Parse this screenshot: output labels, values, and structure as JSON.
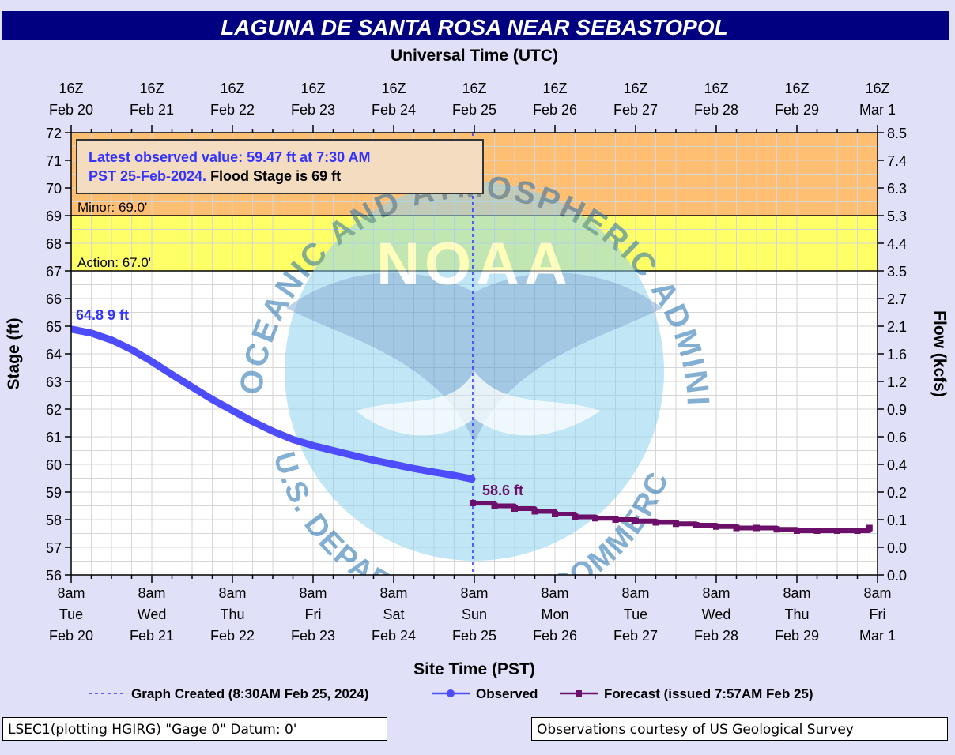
{
  "colors": {
    "background": "#E0E0F8",
    "title_bar": "#000080",
    "minor_band": "#FFBF73",
    "action_band": "#FFFF66",
    "observed": "#4D4DFF",
    "forecast": "#6B0F6B",
    "annotation_text": "#3333FF"
  },
  "chart_data": {
    "type": "line",
    "title": "LAGUNA DE SANTA ROSA NEAR SEBASTOPOL",
    "top_axis_label": "Universal Time (UTC)",
    "top_ticks": [
      {
        "day": 0,
        "line1": "16Z",
        "line2": "Feb 20"
      },
      {
        "day": 1,
        "line1": "16Z",
        "line2": "Feb 21"
      },
      {
        "day": 2,
        "line1": "16Z",
        "line2": "Feb 22"
      },
      {
        "day": 3,
        "line1": "16Z",
        "line2": "Feb 23"
      },
      {
        "day": 4,
        "line1": "16Z",
        "line2": "Feb 24"
      },
      {
        "day": 5,
        "line1": "16Z",
        "line2": "Feb 25"
      },
      {
        "day": 6,
        "line1": "16Z",
        "line2": "Feb 26"
      },
      {
        "day": 7,
        "line1": "16Z",
        "line2": "Feb 27"
      },
      {
        "day": 8,
        "line1": "16Z",
        "line2": "Feb 28"
      },
      {
        "day": 9,
        "line1": "16Z",
        "line2": "Feb 29"
      },
      {
        "day": 10,
        "line1": "16Z",
        "line2": "Mar 1"
      }
    ],
    "bottom_ticks": [
      {
        "day": 0,
        "time": "8am",
        "weekday": "Tue",
        "date": "Feb 20"
      },
      {
        "day": 1,
        "time": "8am",
        "weekday": "Wed",
        "date": "Feb 21"
      },
      {
        "day": 2,
        "time": "8am",
        "weekday": "Thu",
        "date": "Feb 22"
      },
      {
        "day": 3,
        "time": "8am",
        "weekday": "Fri",
        "date": "Feb 23"
      },
      {
        "day": 4,
        "time": "8am",
        "weekday": "Sat",
        "date": "Feb 24"
      },
      {
        "day": 5,
        "time": "8am",
        "weekday": "Sun",
        "date": "Feb 25"
      },
      {
        "day": 6,
        "time": "8am",
        "weekday": "Mon",
        "date": "Feb 26"
      },
      {
        "day": 7,
        "time": "8am",
        "weekday": "Tue",
        "date": "Feb 27"
      },
      {
        "day": 8,
        "time": "8am",
        "weekday": "Wed",
        "date": "Feb 28"
      },
      {
        "day": 9,
        "time": "8am",
        "weekday": "Thu",
        "date": "Feb 29"
      },
      {
        "day": 10,
        "time": "8am",
        "weekday": "Fri",
        "date": "Mar 1"
      }
    ],
    "xlabel": "Site Time (PST)",
    "ylabel": "Stage (ft)",
    "y2label": "Flow (kcfs)",
    "ylim": [
      56,
      72
    ],
    "y_ticks": [
      56,
      57,
      58,
      59,
      60,
      61,
      62,
      63,
      64,
      65,
      66,
      67,
      68,
      69,
      70,
      71,
      72
    ],
    "y2_ticks": [
      {
        "stage": 56,
        "label": "0.0"
      },
      {
        "stage": 57,
        "label": "0.0"
      },
      {
        "stage": 58,
        "label": "0.1"
      },
      {
        "stage": 59,
        "label": "0.2"
      },
      {
        "stage": 60,
        "label": "0.4"
      },
      {
        "stage": 61,
        "label": "0.6"
      },
      {
        "stage": 62,
        "label": "0.9"
      },
      {
        "stage": 63,
        "label": "1.2"
      },
      {
        "stage": 64,
        "label": "1.6"
      },
      {
        "stage": 65,
        "label": "2.1"
      },
      {
        "stage": 66,
        "label": "2.7"
      },
      {
        "stage": 67,
        "label": "3.5"
      },
      {
        "stage": 68,
        "label": "4.4"
      },
      {
        "stage": 69,
        "label": "5.3"
      },
      {
        "stage": 70,
        "label": "6.3"
      },
      {
        "stage": 71,
        "label": "7.4"
      },
      {
        "stage": 72,
        "label": "8.5"
      }
    ],
    "bands": [
      {
        "name": "minor",
        "from": 69,
        "to": 72,
        "label": "Minor: 69.0'"
      },
      {
        "name": "action",
        "from": 67,
        "to": 69,
        "label": "Action: 67.0'"
      }
    ],
    "graph_created_day": 4.98,
    "series": [
      {
        "name": "Observed",
        "x_days": [
          0,
          0.25,
          0.5,
          0.75,
          1,
          1.25,
          1.5,
          1.75,
          2,
          2.25,
          2.5,
          2.75,
          3,
          3.25,
          3.5,
          3.75,
          4,
          4.25,
          4.5,
          4.75,
          4.97
        ],
        "values": [
          64.89,
          64.75,
          64.5,
          64.15,
          63.72,
          63.25,
          62.8,
          62.35,
          61.95,
          61.55,
          61.2,
          60.9,
          60.68,
          60.5,
          60.32,
          60.15,
          60.0,
          59.85,
          59.72,
          59.6,
          59.47
        ]
      },
      {
        "name": "Forecast (issued 7:57AM Feb 25)",
        "x_days": [
          4.98,
          5.25,
          5.5,
          5.75,
          6,
          6.25,
          6.5,
          6.75,
          7,
          7.25,
          7.5,
          7.75,
          8,
          8.25,
          8.5,
          8.75,
          9,
          9.25,
          9.5,
          9.75,
          9.9
        ],
        "values": [
          58.6,
          58.5,
          58.4,
          58.3,
          58.2,
          58.1,
          58.05,
          58.0,
          57.95,
          57.9,
          57.85,
          57.8,
          57.75,
          57.7,
          57.7,
          57.65,
          57.6,
          57.6,
          57.6,
          57.6,
          57.7
        ]
      }
    ],
    "start_label": "64.8 9 ft",
    "forecast_label": "58.6 ft",
    "info_box": {
      "line1": "Latest observed value: 59.47 ft at 7:30 AM",
      "line2_blue": "PST 25-Feb-2024.",
      "line2_black": " Flood Stage is 69 ft"
    },
    "legend": {
      "graph_created": "Graph Created (8:30AM Feb 25, 2024)",
      "observed": "Observed",
      "forecast": "Forecast (issued 7:57AM Feb 25)"
    },
    "grid": true
  },
  "watermark": {
    "center": "NOAA",
    "arc_top": "NATIONAL OCEANIC AND ATMOSPHERIC ADMINISTRATION",
    "arc_bottom": "U.S. DEPARTMENT OF COMMERCE"
  },
  "footer": {
    "left": "LSEC1(plotting HGIRG) \"Gage 0\" Datum: 0'",
    "right": "Observations courtesy of US Geological Survey"
  }
}
